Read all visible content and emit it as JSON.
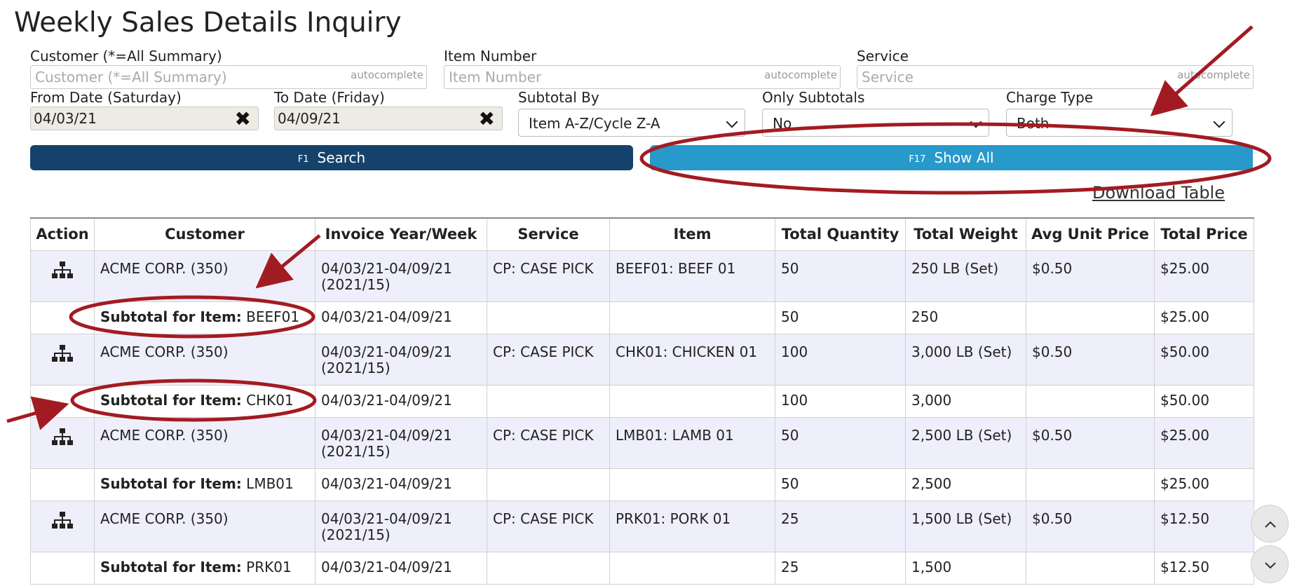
{
  "page": {
    "title": "Weekly Sales Details Inquiry"
  },
  "filters": {
    "customer": {
      "label": "Customer (*=All Summary)",
      "placeholder": "Customer (*=All Summary)",
      "tag": "autocomplete"
    },
    "item_number": {
      "label": "Item Number",
      "placeholder": "Item Number",
      "tag": "autocomplete"
    },
    "service": {
      "label": "Service",
      "placeholder": "Service",
      "tag": "autocomplete"
    },
    "from_date": {
      "label": "From Date (Saturday)",
      "value": "04/03/21",
      "clear": "✖"
    },
    "to_date": {
      "label": "To Date (Friday)",
      "value": "04/09/21",
      "clear": "✖"
    },
    "subtotal_by": {
      "label": "Subtotal By",
      "value": "Item A-Z/Cycle Z-A"
    },
    "only_subtotals": {
      "label": "Only Subtotals",
      "value": "No"
    },
    "charge_type": {
      "label": "Charge Type",
      "value": "Both"
    }
  },
  "buttons": {
    "search": {
      "key": "F1",
      "label": "Search"
    },
    "show_all": {
      "key": "F17",
      "label": "Show All"
    },
    "download": "Download Table"
  },
  "table": {
    "headers": [
      "Action",
      "Customer",
      "Invoice Year/Week",
      "Service",
      "Item",
      "Total Quantity",
      "Total Weight",
      "Avg Unit Price",
      "Total Price"
    ],
    "rows": [
      {
        "customer": "ACME CORP. (350)",
        "week": "04/03/21-04/09/21",
        "week_code": "(2021/15)",
        "service": "CP: CASE PICK",
        "item": "BEEF01: BEEF 01",
        "qty": "50",
        "weight": "250 LB (Set)",
        "avg_price": "$0.50",
        "total": "$25.00",
        "subtotal": {
          "label": "Subtotal for Item:",
          "code": "BEEF01",
          "week": "04/03/21-04/09/21",
          "qty": "50",
          "weight": "250",
          "total": "$25.00"
        }
      },
      {
        "customer": "ACME CORP. (350)",
        "week": "04/03/21-04/09/21",
        "week_code": "(2021/15)",
        "service": "CP: CASE PICK",
        "item": "CHK01: CHICKEN 01",
        "qty": "100",
        "weight": "3,000 LB (Set)",
        "avg_price": "$0.50",
        "total": "$50.00",
        "subtotal": {
          "label": "Subtotal for Item:",
          "code": "CHK01",
          "week": "04/03/21-04/09/21",
          "qty": "100",
          "weight": "3,000",
          "total": "$50.00"
        }
      },
      {
        "customer": "ACME CORP. (350)",
        "week": "04/03/21-04/09/21",
        "week_code": "(2021/15)",
        "service": "CP: CASE PICK",
        "item": "LMB01: LAMB 01",
        "qty": "50",
        "weight": "2,500 LB (Set)",
        "avg_price": "$0.50",
        "total": "$25.00",
        "subtotal": {
          "label": "Subtotal for Item:",
          "code": "LMB01",
          "week": "04/03/21-04/09/21",
          "qty": "50",
          "weight": "2,500",
          "total": "$25.00"
        }
      },
      {
        "customer": "ACME CORP. (350)",
        "week": "04/03/21-04/09/21",
        "week_code": "(2021/15)",
        "service": "CP: CASE PICK",
        "item": "PRK01: PORK 01",
        "qty": "25",
        "weight": "1,500 LB (Set)",
        "avg_price": "$0.50",
        "total": "$12.50",
        "subtotal": {
          "label": "Subtotal for Item:",
          "code": "PRK01",
          "week": "04/03/21-04/09/21",
          "qty": "25",
          "weight": "1,500",
          "total": "$12.50"
        }
      }
    ]
  },
  "colors": {
    "search_button": "#15426b",
    "show_all_button": "#2799cb",
    "annotation": "#a31b22",
    "detail_row": "#efeffc"
  }
}
